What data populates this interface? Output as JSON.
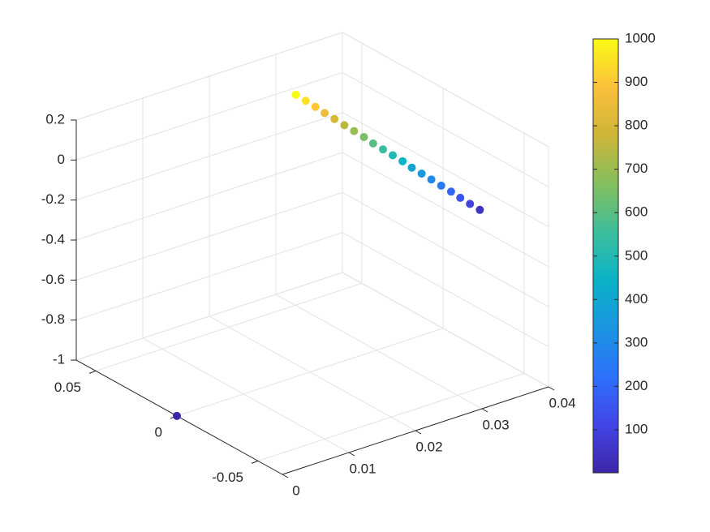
{
  "chart_data": {
    "type": "scatter3d",
    "x": [
      0,
      0.0398,
      0.039,
      0.0382,
      0.0375,
      0.0367,
      0.0359,
      0.0351,
      0.0343,
      0.0336,
      0.0328,
      0.032,
      0.0312,
      0.0305,
      0.0297,
      0.0289,
      0.0281,
      0.0273,
      0.0266,
      0.0258,
      0.025
    ],
    "y": [
      0,
      -0.0235,
      -0.0207,
      -0.018,
      -0.0152,
      -0.0124,
      -0.0096,
      -0.0069,
      -0.0041,
      -0.0013,
      0.0015,
      0.0042,
      0.007,
      0.0098,
      0.0126,
      0.0153,
      0.0181,
      0.0209,
      0.0237,
      0.0264,
      0.0292
    ],
    "z": [
      -1,
      -0.3,
      -0.274,
      -0.247,
      -0.221,
      -0.195,
      -0.168,
      -0.142,
      -0.116,
      -0.089,
      -0.063,
      -0.037,
      -0.011,
      0.016,
      0.042,
      0.068,
      0.095,
      0.121,
      0.147,
      0.174,
      0.2
    ],
    "c": [
      1,
      50,
      100,
      150,
      200,
      250,
      300,
      350,
      400,
      450,
      500,
      550,
      600,
      650,
      700,
      750,
      800,
      850,
      900,
      950,
      1000
    ],
    "xlim": [
      0,
      0.04
    ],
    "xticks": [
      0,
      0.01,
      0.02,
      0.03,
      0.04
    ],
    "ylim": [
      -0.065,
      0.062
    ],
    "yticks": [
      -0.05,
      0,
      0.05
    ],
    "zlim": [
      -1,
      0.2
    ],
    "zticks": [
      -1,
      -0.8,
      -0.6,
      -0.4,
      -0.2,
      0,
      0.2
    ],
    "clim": [
      1,
      1000
    ],
    "cticks": [
      100,
      200,
      300,
      400,
      500,
      600,
      700,
      800,
      900,
      1000
    ],
    "colormap": [
      "#3e26a8",
      "#4245e6",
      "#2d71fb",
      "#1b95e0",
      "#0ab2c7",
      "#3dbe9b",
      "#85bf5d",
      "#cdb538",
      "#fcc03b",
      "#f9fb15"
    ],
    "grid": true
  }
}
